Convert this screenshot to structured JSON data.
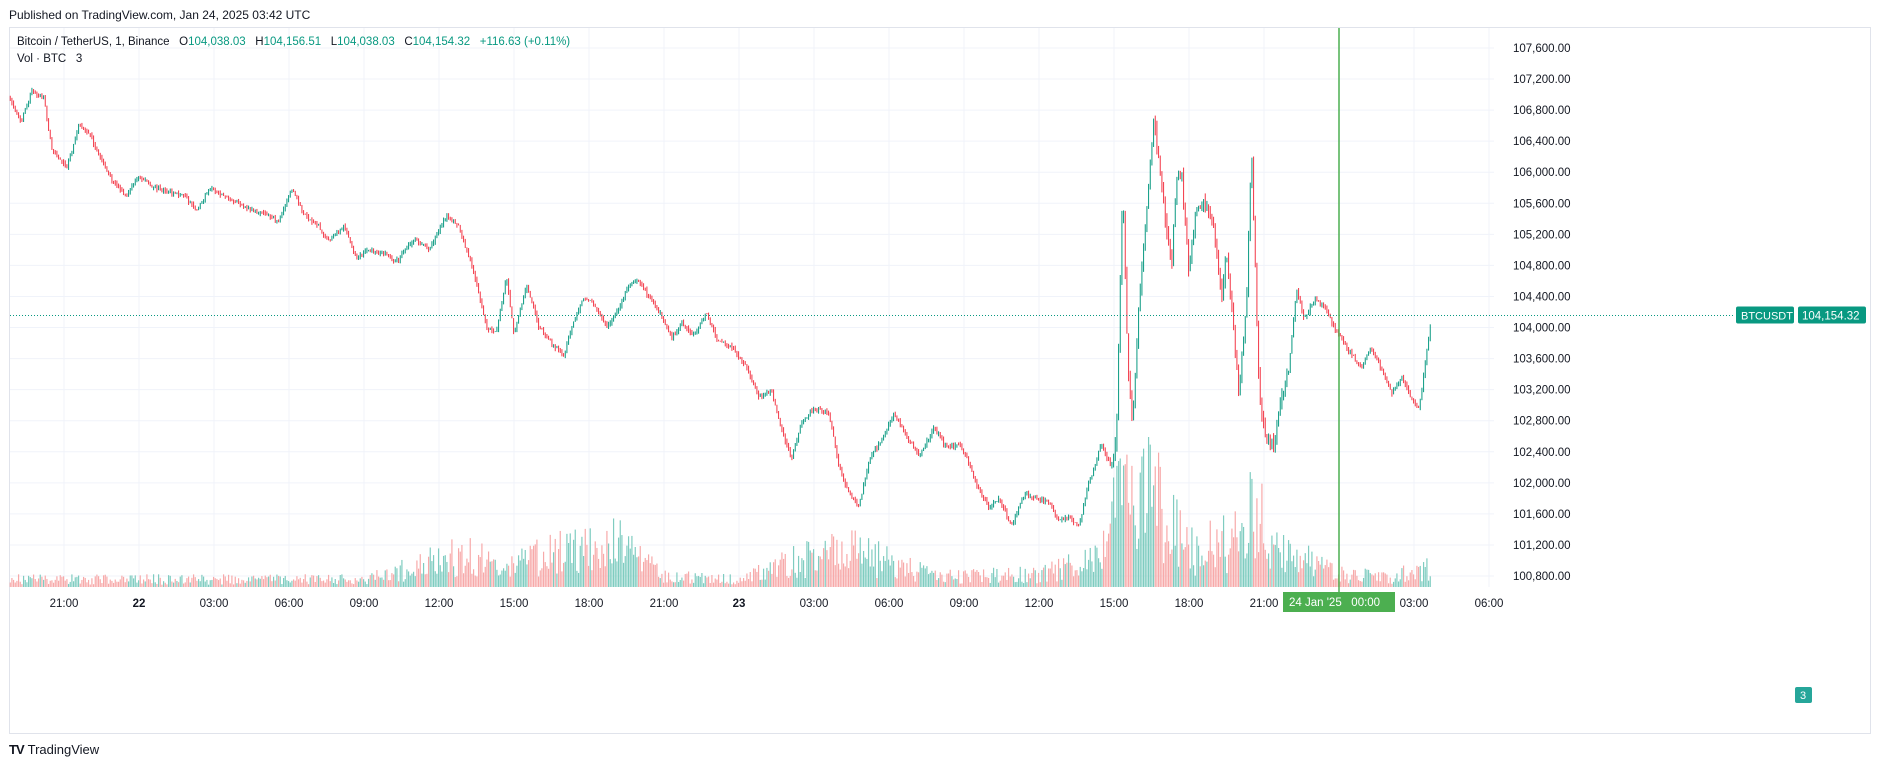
{
  "published": "Published on TradingView.com, Jan 24, 2025 03:42 UTC",
  "legend": {
    "symbol": "Bitcoin / TetherUS, 1, Binance",
    "o_label": "O",
    "o": "104,038.03",
    "h_label": "H",
    "h": "104,156.51",
    "l_label": "L",
    "l": "104,038.03",
    "c_label": "C",
    "c": "104,154.32",
    "change": "+116.63 (+0.11%)",
    "vol_label": "Vol · BTC",
    "vol": "3"
  },
  "footer": {
    "logo": "TV",
    "brand": "TradingView"
  },
  "colors": {
    "up": "#089981",
    "down": "#f23645",
    "up_vol": "#7fccc0",
    "down_vol": "#f7a9a9",
    "grid": "#f0f3fa",
    "crosshair": "#4caf50",
    "last_price": "#089981"
  },
  "chart_data": {
    "type": "candlestick",
    "symbol": "BTCUSDT",
    "interval": "1",
    "exchange": "Binance",
    "last_price": 104154.32,
    "last_price_label": "104,154.32",
    "symbol_badge": "BTCUSDT",
    "volume_badge": "3",
    "crosshair_label": "24 Jan '25   00:00",
    "ylim": [
      100700,
      107800
    ],
    "y_ticks": [
      {
        "v": 100800,
        "label": "100,800.00"
      },
      {
        "v": 101200,
        "label": "101,200.00"
      },
      {
        "v": 101600,
        "label": "101,600.00"
      },
      {
        "v": 102000,
        "label": "102,000.00"
      },
      {
        "v": 102400,
        "label": "102,400.00"
      },
      {
        "v": 102800,
        "label": "102,800.00"
      },
      {
        "v": 103200,
        "label": "103,200.00"
      },
      {
        "v": 103600,
        "label": "103,600.00"
      },
      {
        "v": 104000,
        "label": "104,000.00"
      },
      {
        "v": 104400,
        "label": "104,400.00"
      },
      {
        "v": 104800,
        "label": "104,800.00"
      },
      {
        "v": 105200,
        "label": "105,200.00"
      },
      {
        "v": 105600,
        "label": "105,600.00"
      },
      {
        "v": 106000,
        "label": "106,000.00"
      },
      {
        "v": 106400,
        "label": "106,400.00"
      },
      {
        "v": 106800,
        "label": "106,800.00"
      },
      {
        "v": 107200,
        "label": "107,200.00"
      },
      {
        "v": 107600,
        "label": "107,600.00"
      }
    ],
    "x_ticks": [
      {
        "h": 21,
        "label": "21:00",
        "bold": false
      },
      {
        "h": 24,
        "label": "22",
        "bold": true
      },
      {
        "h": 27,
        "label": "03:00",
        "bold": false
      },
      {
        "h": 30,
        "label": "06:00",
        "bold": false
      },
      {
        "h": 33,
        "label": "09:00",
        "bold": false
      },
      {
        "h": 36,
        "label": "12:00",
        "bold": false
      },
      {
        "h": 39,
        "label": "15:00",
        "bold": false
      },
      {
        "h": 42,
        "label": "18:00",
        "bold": false
      },
      {
        "h": 45,
        "label": "21:00",
        "bold": false
      },
      {
        "h": 48,
        "label": "23",
        "bold": true
      },
      {
        "h": 51,
        "label": "03:00",
        "bold": false
      },
      {
        "h": 54,
        "label": "06:00",
        "bold": false
      },
      {
        "h": 57,
        "label": "09:00",
        "bold": false
      },
      {
        "h": 60,
        "label": "12:00",
        "bold": false
      },
      {
        "h": 63,
        "label": "15:00",
        "bold": false
      },
      {
        "h": 66,
        "label": "18:00",
        "bold": false
      },
      {
        "h": 69,
        "label": "21:00",
        "bold": false
      },
      {
        "h": 75,
        "label": "03:00",
        "bold": false
      },
      {
        "h": 78,
        "label": "06:00",
        "bold": false
      }
    ],
    "crosshair_h": 72,
    "price_path": [
      [
        18.85,
        106950
      ],
      [
        19.3,
        106650
      ],
      [
        19.7,
        107050
      ],
      [
        20.2,
        106950
      ],
      [
        20.5,
        106300
      ],
      [
        21.1,
        106050
      ],
      [
        21.6,
        106600
      ],
      [
        22.0,
        106500
      ],
      [
        22.5,
        106150
      ],
      [
        23.0,
        105850
      ],
      [
        23.5,
        105700
      ],
      [
        24.0,
        105950
      ],
      [
        24.6,
        105800
      ],
      [
        25.2,
        105750
      ],
      [
        25.8,
        105700
      ],
      [
        26.3,
        105500
      ],
      [
        26.8,
        105800
      ],
      [
        27.4,
        105700
      ],
      [
        28.0,
        105600
      ],
      [
        28.6,
        105500
      ],
      [
        29.2,
        105450
      ],
      [
        29.6,
        105350
      ],
      [
        30.1,
        105800
      ],
      [
        30.6,
        105450
      ],
      [
        31.2,
        105300
      ],
      [
        31.6,
        105100
      ],
      [
        32.2,
        105300
      ],
      [
        32.7,
        104900
      ],
      [
        33.2,
        105000
      ],
      [
        33.8,
        104950
      ],
      [
        34.3,
        104850
      ],
      [
        35.0,
        105150
      ],
      [
        35.6,
        105000
      ],
      [
        36.3,
        105450
      ],
      [
        36.8,
        105300
      ],
      [
        37.4,
        104700
      ],
      [
        37.9,
        104000
      ],
      [
        38.3,
        103950
      ],
      [
        38.7,
        104650
      ],
      [
        39.0,
        103900
      ],
      [
        39.5,
        104550
      ],
      [
        40.0,
        104000
      ],
      [
        40.5,
        103800
      ],
      [
        41.0,
        103650
      ],
      [
        41.4,
        104100
      ],
      [
        41.8,
        104400
      ],
      [
        42.2,
        104300
      ],
      [
        42.7,
        104000
      ],
      [
        43.2,
        104250
      ],
      [
        43.6,
        104550
      ],
      [
        44.0,
        104600
      ],
      [
        44.5,
        104350
      ],
      [
        45.0,
        104100
      ],
      [
        45.3,
        103850
      ],
      [
        45.7,
        104050
      ],
      [
        46.2,
        103900
      ],
      [
        46.7,
        104200
      ],
      [
        47.1,
        103850
      ],
      [
        47.7,
        103750
      ],
      [
        48.2,
        103550
      ],
      [
        48.8,
        103100
      ],
      [
        49.3,
        103200
      ],
      [
        49.7,
        102700
      ],
      [
        50.1,
        102300
      ],
      [
        50.5,
        102800
      ],
      [
        51.0,
        102950
      ],
      [
        51.6,
        102900
      ],
      [
        52.0,
        102200
      ],
      [
        52.4,
        101850
      ],
      [
        52.8,
        101700
      ],
      [
        53.2,
        102300
      ],
      [
        53.8,
        102600
      ],
      [
        54.2,
        102900
      ],
      [
        54.7,
        102600
      ],
      [
        55.2,
        102350
      ],
      [
        55.8,
        102700
      ],
      [
        56.3,
        102450
      ],
      [
        56.8,
        102500
      ],
      [
        57.2,
        102250
      ],
      [
        57.6,
        101900
      ],
      [
        58.0,
        101700
      ],
      [
        58.4,
        101800
      ],
      [
        58.9,
        101450
      ],
      [
        59.4,
        101850
      ],
      [
        59.9,
        101800
      ],
      [
        60.4,
        101750
      ],
      [
        60.8,
        101500
      ],
      [
        61.2,
        101550
      ],
      [
        61.6,
        101450
      ],
      [
        62.0,
        102000
      ],
      [
        62.5,
        102500
      ],
      [
        62.9,
        102200
      ],
      [
        63.1,
        102600
      ],
      [
        63.2,
        104000
      ],
      [
        63.35,
        105900
      ],
      [
        63.55,
        103500
      ],
      [
        63.75,
        102800
      ],
      [
        64.0,
        104300
      ],
      [
        64.3,
        105500
      ],
      [
        64.6,
        106700
      ],
      [
        64.9,
        105800
      ],
      [
        65.3,
        104800
      ],
      [
        65.5,
        105900
      ],
      [
        65.7,
        106000
      ],
      [
        66.0,
        104700
      ],
      [
        66.3,
        105600
      ],
      [
        66.7,
        105600
      ],
      [
        67.0,
        105300
      ],
      [
        67.3,
        104400
      ],
      [
        67.5,
        105000
      ],
      [
        67.8,
        103900
      ],
      [
        68.0,
        103200
      ],
      [
        68.3,
        104300
      ],
      [
        68.5,
        106300
      ],
      [
        68.8,
        103200
      ],
      [
        69.1,
        102500
      ],
      [
        69.4,
        102500
      ],
      [
        69.7,
        103100
      ],
      [
        70.0,
        103500
      ],
      [
        70.3,
        104500
      ],
      [
        70.6,
        104100
      ],
      [
        71.0,
        104350
      ],
      [
        71.4,
        104300
      ],
      [
        71.8,
        104000
      ],
      [
        72.1,
        103850
      ],
      [
        72.5,
        103650
      ],
      [
        72.9,
        103500
      ],
      [
        73.3,
        103750
      ],
      [
        73.7,
        103450
      ],
      [
        74.1,
        103150
      ],
      [
        74.5,
        103350
      ],
      [
        74.9,
        103100
      ],
      [
        75.2,
        102950
      ],
      [
        75.5,
        103650
      ],
      [
        75.7,
        104154
      ]
    ],
    "volume_path": [
      [
        18.85,
        3
      ],
      [
        25,
        3
      ],
      [
        33,
        3
      ],
      [
        37.6,
        14
      ],
      [
        38.4,
        6
      ],
      [
        39.7,
        12
      ],
      [
        43.0,
        18
      ],
      [
        45,
        4
      ],
      [
        48,
        3
      ],
      [
        50.6,
        11
      ],
      [
        52.5,
        14
      ],
      [
        56,
        4
      ],
      [
        60,
        5
      ],
      [
        62.5,
        12
      ],
      [
        63.3,
        35
      ],
      [
        64.0,
        30
      ],
      [
        64.5,
        45
      ],
      [
        65.0,
        28
      ],
      [
        66,
        14
      ],
      [
        68.2,
        20
      ],
      [
        68.6,
        34
      ],
      [
        69.2,
        18
      ],
      [
        70.2,
        12
      ],
      [
        72,
        5
      ],
      [
        74,
        4
      ],
      [
        75.5,
        8
      ],
      [
        75.7,
        3
      ]
    ],
    "volume_max": 60
  }
}
